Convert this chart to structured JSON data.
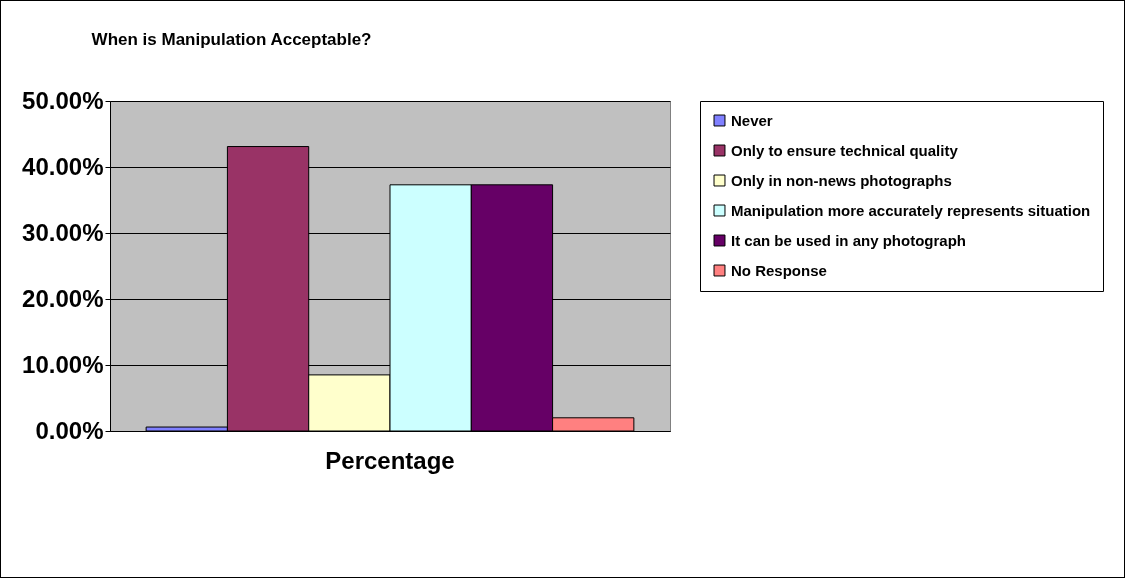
{
  "chart_data": {
    "type": "bar",
    "title": "When is Manipulation Acceptable?",
    "categories": [
      "Percentage"
    ],
    "series": [
      {
        "name": "Never",
        "color": "#8080ff",
        "values": [
          0.6
        ]
      },
      {
        "name": "Only to ensure technical quality",
        "color": "#993366",
        "values": [
          43.1
        ]
      },
      {
        "name": "Only in non-news photographs",
        "color": "#ffffcc",
        "values": [
          8.5
        ]
      },
      {
        "name": "Manipulation more accurately represents situation",
        "color": "#ccffff",
        "values": [
          37.3
        ]
      },
      {
        "name": "It can be used in any photograph",
        "color": "#660066",
        "values": [
          37.3
        ]
      },
      {
        "name": "No Response",
        "color": "#ff8080",
        "values": [
          2.0
        ]
      }
    ],
    "ylim": [
      0,
      50
    ],
    "yticks": [
      {
        "value": 0,
        "label": "0.00%"
      },
      {
        "value": 10,
        "label": "10.00%"
      },
      {
        "value": 20,
        "label": "20.00%"
      },
      {
        "value": 30,
        "label": "30.00%"
      },
      {
        "value": 40,
        "label": "40.00%"
      },
      {
        "value": 50,
        "label": "50.00%"
      }
    ],
    "grid": "y",
    "legend": "right"
  }
}
